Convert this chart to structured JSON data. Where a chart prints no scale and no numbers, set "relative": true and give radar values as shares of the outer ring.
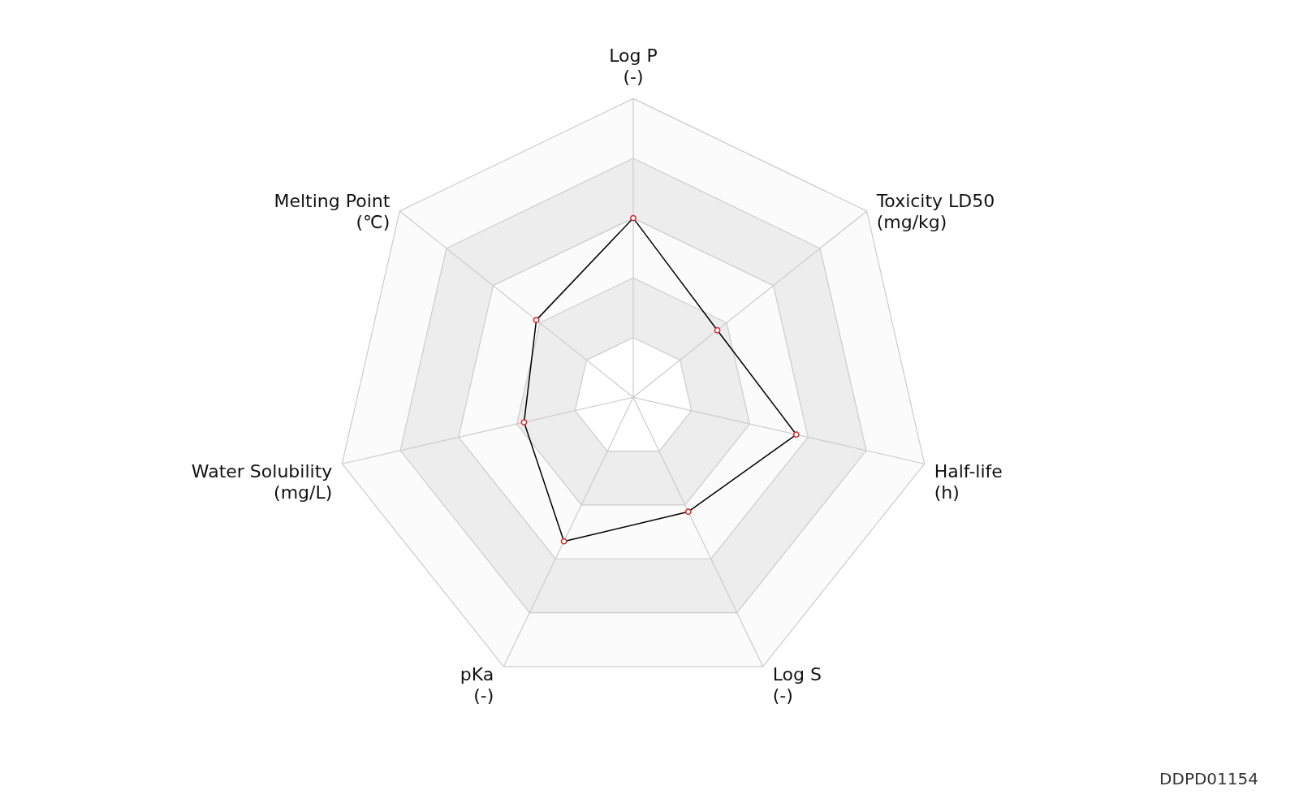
{
  "chart_data": {
    "type": "radar",
    "relative": true,
    "categories": [
      "Log P\n(-)",
      "Toxicity LD50\n(mg/kg)",
      "Half-life\n(h)",
      "Log S\n(-)",
      "pKa\n(-)",
      "Water Solubility\n(mg/L)",
      "Melting Point\n(℃)"
    ],
    "series": [
      {
        "color": "#000000",
        "values": [
          0.6,
          0.36,
          0.56,
          0.425,
          0.535,
          0.375,
          0.415
        ]
      }
    ],
    "marker": "circle",
    "annotations": [
      "DDPD01154"
    ]
  }
}
